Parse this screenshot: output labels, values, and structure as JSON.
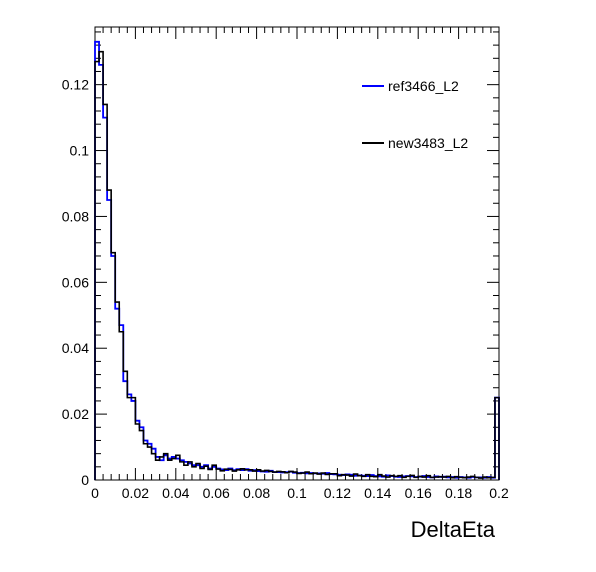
{
  "chart_data": {
    "type": "line",
    "xlabel": "DeltaEta",
    "ylabel": "",
    "xlim": [
      0,
      0.2
    ],
    "ylim": [
      0,
      0.1375
    ],
    "x_ticks": [
      0,
      0.02,
      0.04,
      0.06,
      0.08,
      0.1,
      0.12,
      0.14,
      0.16,
      0.18,
      0.2
    ],
    "x_tick_labels": [
      "0",
      "0.02",
      "0.04",
      "0.06",
      "0.08",
      "0.1",
      "0.12",
      "0.14",
      "0.16",
      "0.18",
      "0.2"
    ],
    "y_ticks": [
      0,
      0.02,
      0.04,
      0.06,
      0.08,
      0.1,
      0.12
    ],
    "y_tick_labels": [
      "0",
      "0.02",
      "0.04",
      "0.06",
      "0.08",
      "0.1",
      "0.12"
    ],
    "grid": false,
    "legend_position": "top-right",
    "bin_width": 0.002,
    "series": [
      {
        "name": "ref3466_L2",
        "color": "#0000ff",
        "values": [
          0.133,
          0.126,
          0.11,
          0.085,
          0.068,
          0.052,
          0.047,
          0.03,
          0.026,
          0.024,
          0.018,
          0.016,
          0.012,
          0.011,
          0.0095,
          0.007,
          0.006,
          0.0075,
          0.0065,
          0.007,
          0.0065,
          0.006,
          0.0055,
          0.005,
          0.0045,
          0.0045,
          0.004,
          0.0045,
          0.0035,
          0.004,
          0.0035,
          0.0032,
          0.003,
          0.0035,
          0.003,
          0.0033,
          0.003,
          0.0033,
          0.0028,
          0.003,
          0.0027,
          0.0026,
          0.0025,
          0.0028,
          0.0024,
          0.0024,
          0.0023,
          0.0024,
          0.0025,
          0.0022,
          0.0021,
          0.0022,
          0.002,
          0.0021,
          0.002,
          0.002,
          0.0019,
          0.0021,
          0.0018,
          0.0017,
          0.0016,
          0.0015,
          0.0017,
          0.0016,
          0.0013,
          0.0014,
          0.0013,
          0.0012,
          0.0015,
          0.0012,
          0.0011,
          0.001,
          0.0014,
          0.0012,
          0.001,
          0.0009,
          0.0011,
          0.0012,
          0.0011,
          0.0009,
          0.001,
          0.0012,
          0.0009,
          0.0008,
          0.0011,
          0.0009,
          0.001,
          0.0008,
          0.0009,
          0.0007,
          0.0009,
          0.0008,
          0.0007,
          0.0009,
          0.0008,
          0.0008,
          0.0007,
          0.0009,
          0.0007,
          0.025
        ]
      },
      {
        "name": "new3483_L2",
        "color": "#000000",
        "values": [
          0.127,
          0.13,
          0.114,
          0.088,
          0.069,
          0.054,
          0.045,
          0.033,
          0.025,
          0.025,
          0.017,
          0.015,
          0.011,
          0.01,
          0.008,
          0.006,
          0.007,
          0.008,
          0.006,
          0.0065,
          0.0075,
          0.0055,
          0.0045,
          0.0055,
          0.004,
          0.005,
          0.0035,
          0.0042,
          0.0032,
          0.0045,
          0.0033,
          0.0028,
          0.0033,
          0.0032,
          0.0027,
          0.0031,
          0.0034,
          0.0031,
          0.0031,
          0.0027,
          0.0031,
          0.0027,
          0.0029,
          0.0026,
          0.0024,
          0.0026,
          0.0025,
          0.0022,
          0.0026,
          0.0024,
          0.002,
          0.0021,
          0.0024,
          0.0019,
          0.0021,
          0.0018,
          0.0021,
          0.0017,
          0.0019,
          0.0019,
          0.0013,
          0.0016,
          0.0015,
          0.0012,
          0.0018,
          0.0013,
          0.0011,
          0.0016,
          0.0011,
          0.001,
          0.0016,
          0.0012,
          0.0009,
          0.0013,
          0.0011,
          0.0013,
          0.0008,
          0.0011,
          0.0014,
          0.0008,
          0.0011,
          0.0009,
          0.0013,
          0.0008,
          0.0009,
          0.001,
          0.0009,
          0.0011,
          0.0007,
          0.001,
          0.0008,
          0.0007,
          0.0009,
          0.0011,
          0.0008,
          0.0006,
          0.0009,
          0.0007,
          0.0008,
          0.025
        ]
      }
    ]
  }
}
